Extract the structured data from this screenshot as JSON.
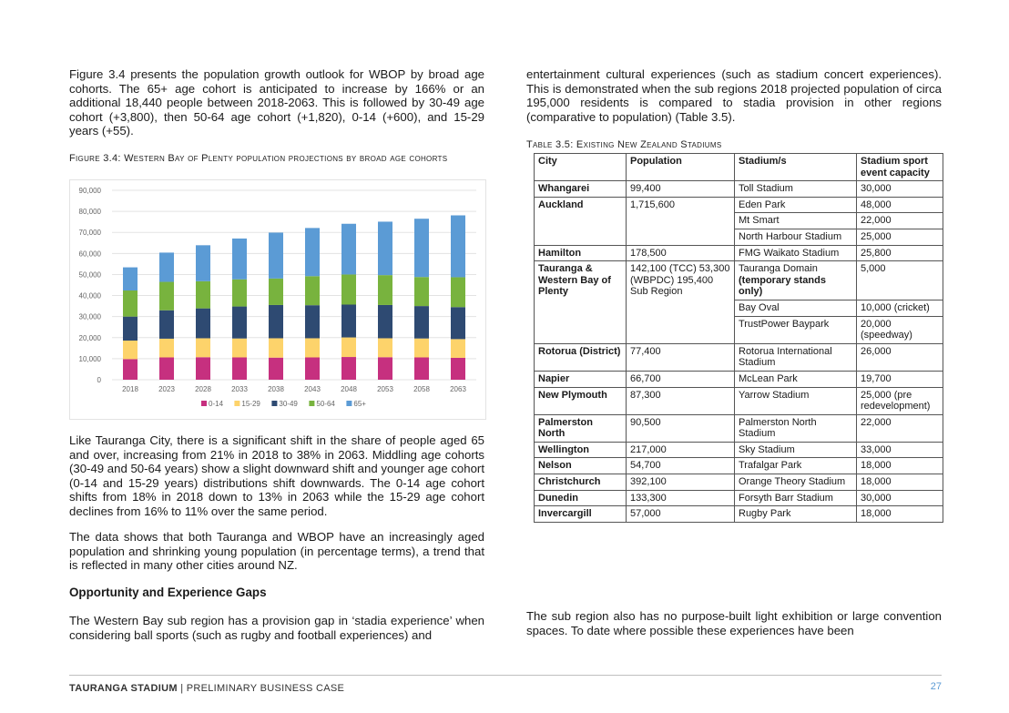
{
  "left": {
    "para1": "Figure 3.4 presents the population growth outlook for WBOP by broad age cohorts. The 65+ age cohort is anticipated to increase by 166% or an additional 18,440 people between 2018-2063. This is followed by 30-49 age cohort (+3,800), then 50-64 age cohort (+1,820), 0-14 (+600), and 15-29 years (+55).",
    "figure_caption": "Figure 3.4: Western Bay of Plenty population projections by broad age cohorts",
    "para2": "Like Tauranga City, there is a significant shift in the share of people aged 65 and over, increasing from 21% in 2018 to 38% in 2063. Middling age cohorts (30-49 and 50-64 years) show a slight downward shift and younger age cohort (0-14 and 15-29 years) distributions shift downwards. The 0-14 age cohort shifts from 18% in 2018 down to 13% in 2063 while the 15-29 age cohort declines from 16% to 11% over the same period.",
    "para3": "The data shows that both Tauranga and WBOP have an increasingly aged population and shrinking young population (in percentage terms), a trend that is reflected in many other cities around NZ.",
    "heading": "Opportunity and Experience Gaps",
    "para4": "The Western Bay sub region has a provision gap in ‘stadia experience’ when considering ball sports (such as rugby and football experiences) and"
  },
  "right": {
    "para1": "entertainment cultural experiences (such as stadium concert experiences). This is demonstrated when the sub regions 2018 projected population of circa 195,000 residents is compared to stadia provision in other regions (comparative to population) (Table 3.5).",
    "table_caption": "Table 3.5: Existing New Zealand Stadiums",
    "para2": "The sub region also has no purpose-built light exhibition or large convention spaces. To date where possible these experiences have been"
  },
  "table": {
    "headers": [
      "City",
      "Population",
      "Stadium/s",
      "Stadium sport event capacity"
    ],
    "rows": [
      {
        "city": "Whangarei",
        "population": "99,400",
        "stadiums": [
          {
            "name": "Toll Stadium",
            "capacity": "30,000"
          }
        ]
      },
      {
        "city": "Auckland",
        "population": "1,715,600",
        "stadiums": [
          {
            "name": "Eden Park",
            "capacity": "48,000"
          },
          {
            "name": "Mt Smart",
            "capacity": "22,000"
          },
          {
            "name": "North Harbour Stadium",
            "capacity": "25,000"
          }
        ]
      },
      {
        "city": "Hamilton",
        "population": "178,500",
        "stadiums": [
          {
            "name": "FMG Waikato Stadium",
            "capacity": "25,800"
          }
        ]
      },
      {
        "city": "Tauranga & Western Bay of Plenty",
        "population": "142,100 (TCC) 53,300 (WBPDC) 195,400 Sub Region",
        "stadiums": [
          {
            "name": "Tauranga Domain",
            "note": "(temporary stands only)",
            "capacity": "5,000"
          },
          {
            "name": "Bay Oval",
            "capacity": "10,000 (cricket)"
          },
          {
            "name": "TrustPower Baypark",
            "capacity": "20,000 (speedway)"
          }
        ]
      },
      {
        "city": "Rotorua (District)",
        "population": "77,400",
        "stadiums": [
          {
            "name": "Rotorua International Stadium",
            "capacity": "26,000"
          }
        ]
      },
      {
        "city": "Napier",
        "population": "66,700",
        "stadiums": [
          {
            "name": "McLean Park",
            "capacity": "19,700"
          }
        ]
      },
      {
        "city": "New Plymouth",
        "population": "87,300",
        "stadiums": [
          {
            "name": "Yarrow Stadium",
            "capacity": "25,000 (pre redevelopment)"
          }
        ]
      },
      {
        "city": "Palmerston North",
        "population": "90,500",
        "stadiums": [
          {
            "name": "Palmerston North Stadium",
            "capacity": "22,000"
          }
        ]
      },
      {
        "city": "Wellington",
        "population": "217,000",
        "stadiums": [
          {
            "name": "Sky Stadium",
            "capacity": "33,000"
          }
        ]
      },
      {
        "city": "Nelson",
        "population": "54,700",
        "stadiums": [
          {
            "name": "Trafalgar Park",
            "capacity": "18,000"
          }
        ]
      },
      {
        "city": "Christchurch",
        "population": "392,100",
        "stadiums": [
          {
            "name": "Orange Theory Stadium",
            "capacity": "18,000"
          }
        ]
      },
      {
        "city": "Dunedin",
        "population": "133,300",
        "stadiums": [
          {
            "name": "Forsyth Barr Stadium",
            "capacity": "30,000"
          }
        ]
      },
      {
        "city": "Invercargill",
        "population": "57,000",
        "stadiums": [
          {
            "name": "Rugby Park",
            "capacity": "18,000"
          }
        ]
      }
    ]
  },
  "chart_data": {
    "type": "bar",
    "stacked": true,
    "categories": [
      "2018",
      "2023",
      "2028",
      "2033",
      "2038",
      "2043",
      "2048",
      "2053",
      "2058",
      "2063"
    ],
    "yticks": [
      "0",
      "10,000",
      "20,000",
      "30,000",
      "40,000",
      "50,000",
      "60,000",
      "70,000",
      "80,000",
      "90,000"
    ],
    "ylim": [
      0,
      90000
    ],
    "grid": true,
    "legend_position": "bottom",
    "series": [
      {
        "name": "0-14",
        "color": "#c6307f",
        "values": [
          9800,
          10600,
          10700,
          10600,
          10500,
          10600,
          10800,
          10700,
          10600,
          10400
        ]
      },
      {
        "name": "15-29",
        "color": "#fdd36b",
        "values": [
          8800,
          8900,
          9000,
          9000,
          9200,
          9100,
          9300,
          9000,
          9000,
          8900
        ]
      },
      {
        "name": "30-49",
        "color": "#2e4a72",
        "values": [
          11400,
          13500,
          14200,
          15200,
          15800,
          15700,
          15600,
          15800,
          15400,
          15200
        ]
      },
      {
        "name": "50-64",
        "color": "#78b33e",
        "values": [
          12400,
          13500,
          12900,
          12900,
          12600,
          13800,
          14300,
          14200,
          13800,
          14200
        ]
      },
      {
        "name": "65+",
        "color": "#5b9bd5",
        "values": [
          11000,
          13900,
          17100,
          19400,
          21800,
          22900,
          24100,
          25400,
          27700,
          29400
        ]
      }
    ]
  },
  "footer": {
    "brand": "TAURANGA STADIUM",
    "separator": " | ",
    "doc": "PRELIMINARY BUSINESS CASE",
    "page": "27"
  }
}
